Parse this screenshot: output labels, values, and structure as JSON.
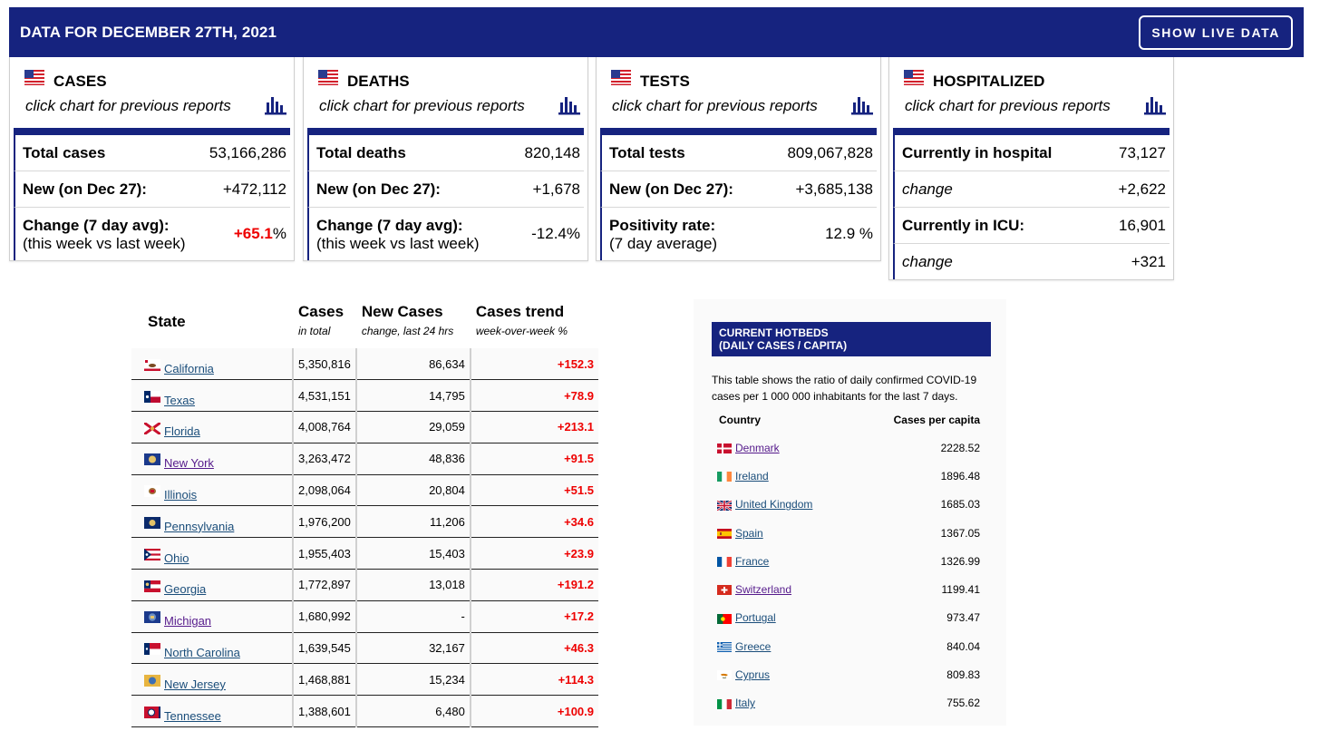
{
  "header": {
    "title": "DATA FOR DECEMBER 27TH, 2021",
    "live_button": "SHOW LIVE DATA"
  },
  "cards": {
    "cases": {
      "name": "CASES",
      "sub": "click chart for previous reports",
      "row1": {
        "label": "Total cases",
        "value": "53,166,286"
      },
      "row2": {
        "label": "New (on Dec 27):",
        "value": "+472,112"
      },
      "row3": {
        "label": "Change (7 day avg):",
        "note": "(this week vs last week)",
        "value": "+65.1",
        "unit": "%"
      }
    },
    "deaths": {
      "name": "DEATHS",
      "sub": "click chart for previous reports",
      "row1": {
        "label": "Total deaths",
        "value": "820,148"
      },
      "row2": {
        "label": "New (on Dec 27):",
        "value": "+1,678"
      },
      "row3": {
        "label": "Change (7 day avg):",
        "note": "(this week vs last week)",
        "value": "-12.4%"
      }
    },
    "tests": {
      "name": "TESTS",
      "sub": "click chart for previous reports",
      "row1": {
        "label": "Total tests",
        "value": "809,067,828"
      },
      "row2": {
        "label": "New (on Dec 27):",
        "value": "+3,685,138"
      },
      "row3": {
        "label": "Positivity rate:",
        "note": "(7 day average)",
        "value": "12.9 %"
      }
    },
    "hospitalized": {
      "name": "HOSPITALIZED",
      "sub": "click chart for previous reports",
      "row1": {
        "label": "Currently in hospital",
        "value": "73,127"
      },
      "row2": {
        "label": "change",
        "value": "+2,622"
      },
      "row3": {
        "label": "Currently in ICU:",
        "value": "16,901"
      },
      "row4": {
        "label": "change",
        "value": "+321"
      }
    }
  },
  "states_table": {
    "headers": {
      "state": "State",
      "cases": "Cases",
      "cases_sub": "in total",
      "new_cases": "New Cases",
      "new_cases_sub": "change, last 24 hrs",
      "trend": "Cases trend",
      "trend_sub": "week-over-week %"
    },
    "rows": [
      {
        "state": "California",
        "cases": "5,350,816",
        "new": "86,634",
        "trend": "+152.3",
        "visited": false,
        "flag": "california-flag"
      },
      {
        "state": "Texas",
        "cases": "4,531,151",
        "new": "14,795",
        "trend": "+78.9",
        "visited": false,
        "flag": "texas-flag"
      },
      {
        "state": "Florida",
        "cases": "4,008,764",
        "new": "29,059",
        "trend": "+213.1",
        "visited": false,
        "flag": "florida-flag"
      },
      {
        "state": "New York",
        "cases": "3,263,472",
        "new": "48,836",
        "trend": "+91.5",
        "visited": true,
        "flag": "new-york-flag"
      },
      {
        "state": "Illinois",
        "cases": "2,098,064",
        "new": "20,804",
        "trend": "+51.5",
        "visited": false,
        "flag": "illinois-flag"
      },
      {
        "state": "Pennsylvania",
        "cases": "1,976,200",
        "new": "11,206",
        "trend": "+34.6",
        "visited": false,
        "flag": "pennsylvania-flag"
      },
      {
        "state": "Ohio",
        "cases": "1,955,403",
        "new": "15,403",
        "trend": "+23.9",
        "visited": false,
        "flag": "ohio-flag"
      },
      {
        "state": "Georgia",
        "cases": "1,772,897",
        "new": "13,018",
        "trend": "+191.2",
        "visited": false,
        "flag": "georgia-flag"
      },
      {
        "state": "Michigan",
        "cases": "1,680,992",
        "new": "-",
        "trend": "+17.2",
        "visited": true,
        "flag": "michigan-flag"
      },
      {
        "state": "North Carolina",
        "cases": "1,639,545",
        "new": "32,167",
        "trend": "+46.3",
        "visited": false,
        "flag": "north-carolina-flag"
      },
      {
        "state": "New Jersey",
        "cases": "1,468,881",
        "new": "15,234",
        "trend": "+114.3",
        "visited": false,
        "flag": "new-jersey-flag"
      },
      {
        "state": "Tennessee",
        "cases": "1,388,601",
        "new": "6,480",
        "trend": "+100.9",
        "visited": false,
        "flag": "tennessee-flag"
      }
    ]
  },
  "hotbeds": {
    "title_line1": "CURRENT HOTBEDS",
    "title_line2": "(DAILY CASES / CAPITA)",
    "description": "This table shows the ratio of daily confirmed COVID-19 cases per 1 000 000 inhabitants for the last 7 days.",
    "col_country": "Country",
    "col_value": "Cases per capita",
    "rows": [
      {
        "country": "Denmark",
        "value": "2228.52",
        "visited": true,
        "flag": "denmark-flag"
      },
      {
        "country": "Ireland",
        "value": "1896.48",
        "visited": false,
        "flag": "ireland-flag"
      },
      {
        "country": "United Kingdom",
        "value": "1685.03",
        "visited": false,
        "flag": "uk-flag"
      },
      {
        "country": "Spain",
        "value": "1367.05",
        "visited": false,
        "flag": "spain-flag"
      },
      {
        "country": "France",
        "value": "1326.99",
        "visited": false,
        "flag": "france-flag"
      },
      {
        "country": "Switzerland",
        "value": "1199.41",
        "visited": true,
        "flag": "switzerland-flag"
      },
      {
        "country": "Portugal",
        "value": "973.47",
        "visited": false,
        "flag": "portugal-flag"
      },
      {
        "country": "Greece",
        "value": "840.04",
        "visited": false,
        "flag": "greece-flag"
      },
      {
        "country": "Cyprus",
        "value": "809.83",
        "visited": false,
        "flag": "cyprus-flag"
      },
      {
        "country": "Italy",
        "value": "755.62",
        "visited": false,
        "flag": "italy-flag"
      }
    ]
  },
  "colors": {
    "navy": "#16237f",
    "red": "#ee0000",
    "link": "#1a4d7a",
    "visited": "#551a8b"
  }
}
